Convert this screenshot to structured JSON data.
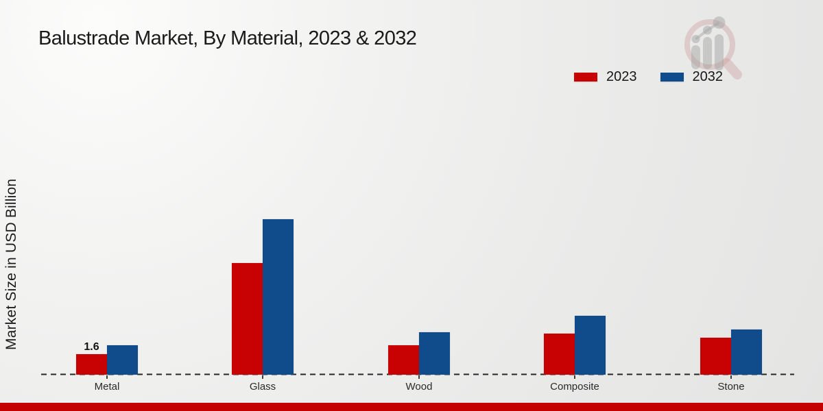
{
  "title": "Balustrade Market, By Material, 2023 & 2032",
  "ylabel": "Market Size in USD Billion",
  "legend": [
    {
      "label": "2023",
      "color": "#c80202"
    },
    {
      "label": "2032",
      "color": "#104c8c"
    }
  ],
  "colors": {
    "series_2023_red": "#c80202",
    "series_2032_blue": "#104c8c",
    "footer_strip_red": "#c40000",
    "baseline_dash": "#262626"
  },
  "watermark_icon": "magnifier-growth-chart-logo",
  "chart_data": {
    "type": "bar",
    "title": "Balustrade Market, By Material, 2023 & 2032",
    "xlabel": "",
    "ylabel": "Market Size in USD Billion",
    "categories": [
      "Metal",
      "Glass",
      "Wood",
      "Composite",
      "Stone"
    ],
    "series": [
      {
        "name": "2023",
        "color": "#c80202",
        "values": [
          1.6,
          8.7,
          2.3,
          3.2,
          2.9
        ]
      },
      {
        "name": "2032",
        "color": "#104c8c",
        "values": [
          2.3,
          12.1,
          3.3,
          4.6,
          3.5
        ]
      }
    ],
    "bar_labels": [
      {
        "category": "Metal",
        "series": "2023",
        "text": "1.6"
      }
    ],
    "ylim": [
      0,
      12.5
    ],
    "y_axis_ticks_visible": false,
    "grid": false,
    "baseline_style": "dashed",
    "legend_position": "top-right"
  }
}
